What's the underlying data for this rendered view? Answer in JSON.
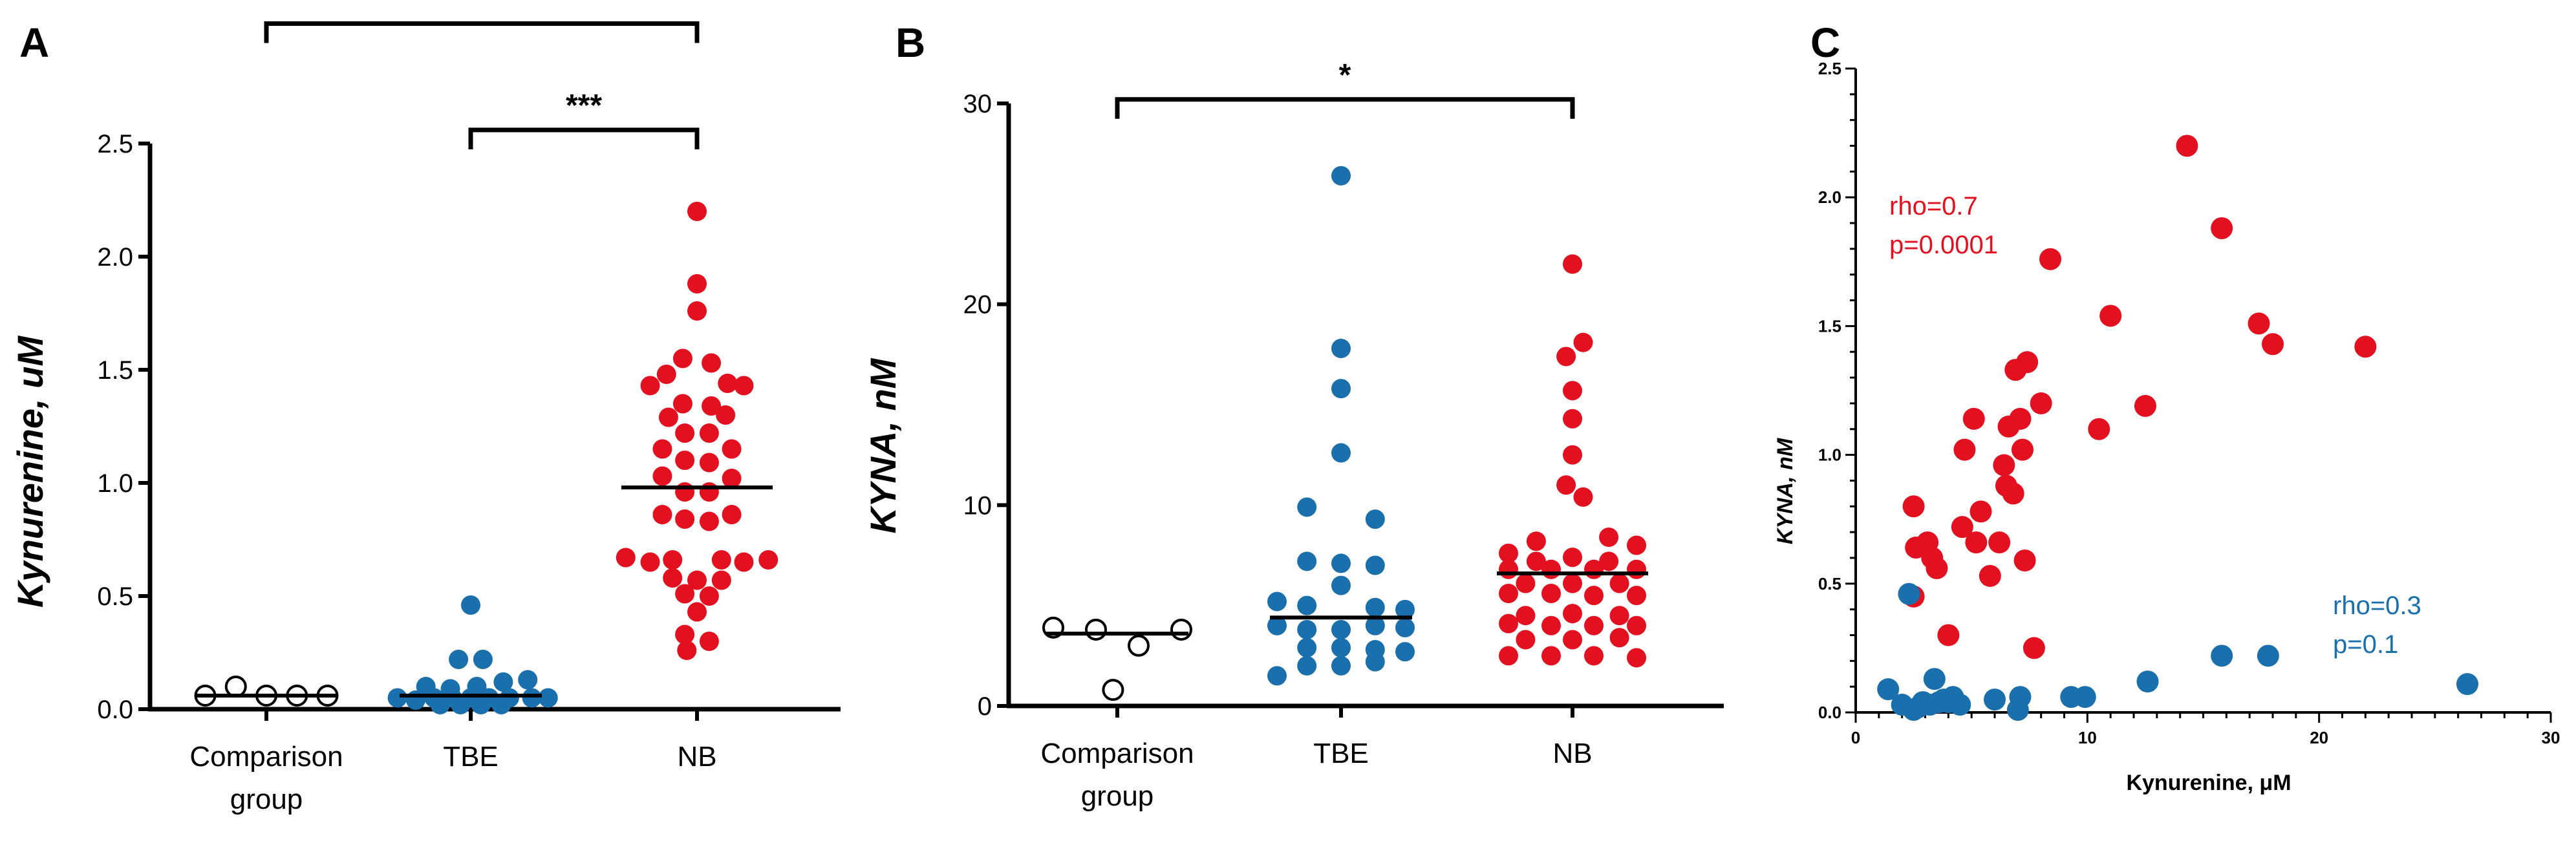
{
  "colors": {
    "tbe": "#1a6fad",
    "nb": "#e3101f",
    "comparison_fill": "#ffffff",
    "comparison_stroke": "#000000"
  },
  "chart_data": [
    {
      "id": "A",
      "type": "scatter",
      "panel_letter": "A",
      "ylabel_main": "Kynurenine,",
      "ylabel_unit": " uM",
      "ylim": [
        0,
        2.5
      ],
      "yticks": [
        0.0,
        0.5,
        1.0,
        1.5,
        2.0,
        2.5
      ],
      "ytick_labels": [
        "0.0",
        "0.5",
        "1.0",
        "1.5",
        "2.0",
        "2.5"
      ],
      "categories": [
        {
          "lines": [
            "Comparison",
            "group"
          ]
        },
        {
          "lines": [
            "TBE"
          ]
        },
        {
          "lines": [
            "NB"
          ]
        }
      ],
      "series": [
        {
          "category": 0,
          "style": "open",
          "median": 0.06,
          "points": [
            [
              -0.3,
              0.06
            ],
            [
              -0.15,
              0.1
            ],
            [
              0,
              0.06
            ],
            [
              0.15,
              0.06
            ],
            [
              0.3,
              0.06
            ]
          ]
        },
        {
          "category": 1,
          "style": "tbe",
          "median": 0.06,
          "points": [
            [
              0,
              0.46
            ],
            [
              -0.06,
              0.22
            ],
            [
              0.06,
              0.22
            ],
            [
              -0.22,
              0.1
            ],
            [
              -0.1,
              0.09
            ],
            [
              0.03,
              0.1
            ],
            [
              0.16,
              0.12
            ],
            [
              0.28,
              0.13
            ],
            [
              -0.36,
              0.05
            ],
            [
              -0.27,
              0.04
            ],
            [
              -0.18,
              0.05
            ],
            [
              -0.09,
              0.05
            ],
            [
              0,
              0.05
            ],
            [
              0.09,
              0.05
            ],
            [
              0.19,
              0.05
            ],
            [
              0.3,
              0.05
            ],
            [
              0.38,
              0.05
            ],
            [
              -0.15,
              0.02
            ],
            [
              -0.05,
              0.02
            ],
            [
              0.05,
              0.02
            ],
            [
              0.15,
              0.02
            ]
          ]
        },
        {
          "category": 2,
          "style": "nb",
          "median": 0.98,
          "points": [
            [
              0,
              2.2
            ],
            [
              0,
              1.88
            ],
            [
              0,
              1.76
            ],
            [
              -0.07,
              1.55
            ],
            [
              0.07,
              1.53
            ],
            [
              -0.15,
              1.48
            ],
            [
              0.15,
              1.44
            ],
            [
              -0.23,
              1.43
            ],
            [
              0.23,
              1.43
            ],
            [
              -0.07,
              1.35
            ],
            [
              0.07,
              1.34
            ],
            [
              -0.14,
              1.29
            ],
            [
              0.14,
              1.3
            ],
            [
              -0.06,
              1.22
            ],
            [
              0.06,
              1.22
            ],
            [
              -0.17,
              1.15
            ],
            [
              0.17,
              1.15
            ],
            [
              -0.06,
              1.1
            ],
            [
              0.06,
              1.09
            ],
            [
              -0.17,
              1.03
            ],
            [
              0.17,
              1.02
            ],
            [
              -0.06,
              0.96
            ],
            [
              0.06,
              0.96
            ],
            [
              -0.17,
              0.86
            ],
            [
              0.17,
              0.86
            ],
            [
              -0.06,
              0.84
            ],
            [
              0.06,
              0.83
            ],
            [
              -0.35,
              0.67
            ],
            [
              -0.23,
              0.65
            ],
            [
              -0.12,
              0.66
            ],
            [
              0.12,
              0.66
            ],
            [
              0.23,
              0.65
            ],
            [
              0.35,
              0.66
            ],
            [
              -0.12,
              0.58
            ],
            [
              0,
              0.57
            ],
            [
              0.12,
              0.57
            ],
            [
              -0.06,
              0.51
            ],
            [
              0.06,
              0.5
            ],
            [
              0,
              0.43
            ],
            [
              -0.06,
              0.33
            ],
            [
              0.06,
              0.3
            ],
            [
              -0.05,
              0.26
            ]
          ]
        }
      ],
      "brackets": [
        {
          "from": 0,
          "to": 2,
          "level": 3.03,
          "label": "***"
        },
        {
          "from": 1,
          "to": 2,
          "level": 2.56,
          "label": "***"
        }
      ]
    },
    {
      "id": "B",
      "type": "scatter",
      "panel_letter": "B",
      "ylabel_main": "KYNA,",
      "ylabel_unit": " nM",
      "ylim": [
        0,
        30
      ],
      "yticks": [
        0,
        10,
        20,
        30
      ],
      "ytick_labels": [
        "0",
        "10",
        "20",
        "30"
      ],
      "categories": [
        {
          "lines": [
            "Comparison",
            "group"
          ]
        },
        {
          "lines": [
            "TBE"
          ]
        },
        {
          "lines": [
            "NB"
          ]
        }
      ],
      "series": [
        {
          "category": 0,
          "style": "open",
          "median": 3.6,
          "points": [
            [
              -0.3,
              3.9
            ],
            [
              -0.1,
              3.8
            ],
            [
              0.1,
              3.0
            ],
            [
              0.3,
              3.8
            ],
            [
              -0.02,
              0.8
            ]
          ]
        },
        {
          "category": 1,
          "style": "tbe",
          "median": 4.4,
          "points": [
            [
              0,
              26.4
            ],
            [
              0,
              17.8
            ],
            [
              0,
              15.8
            ],
            [
              0,
              12.6
            ],
            [
              -0.16,
              9.9
            ],
            [
              0.16,
              9.3
            ],
            [
              -0.16,
              7.2
            ],
            [
              0,
              7.1
            ],
            [
              0.16,
              7.0
            ],
            [
              0,
              6.0
            ],
            [
              -0.3,
              5.2
            ],
            [
              -0.16,
              5.0
            ],
            [
              0.16,
              4.9
            ],
            [
              0.3,
              4.8
            ],
            [
              -0.3,
              4.0
            ],
            [
              -0.16,
              3.8
            ],
            [
              0,
              3.8
            ],
            [
              0.16,
              4.0
            ],
            [
              0.3,
              3.9
            ],
            [
              -0.16,
              2.9
            ],
            [
              0,
              2.9
            ],
            [
              0.16,
              2.8
            ],
            [
              0.3,
              2.7
            ],
            [
              -0.3,
              1.5
            ],
            [
              -0.16,
              2.0
            ],
            [
              0,
              2.0
            ],
            [
              0.16,
              2.2
            ]
          ]
        },
        {
          "category": 2,
          "style": "nb",
          "median": 6.6,
          "points": [
            [
              0,
              22.0
            ],
            [
              0.05,
              18.1
            ],
            [
              -0.03,
              17.4
            ],
            [
              0,
              15.7
            ],
            [
              0,
              14.3
            ],
            [
              0,
              12.5
            ],
            [
              -0.03,
              11.0
            ],
            [
              0.05,
              10.4
            ],
            [
              0.17,
              8.4
            ],
            [
              -0.17,
              8.2
            ],
            [
              0.3,
              8.0
            ],
            [
              -0.3,
              7.6
            ],
            [
              -0.17,
              7.2
            ],
            [
              0.17,
              7.2
            ],
            [
              0,
              7.4
            ],
            [
              -0.3,
              6.8
            ],
            [
              -0.1,
              6.8
            ],
            [
              0.1,
              6.8
            ],
            [
              0.3,
              6.8
            ],
            [
              -0.22,
              6.1
            ],
            [
              0,
              6.1
            ],
            [
              0.22,
              6.1
            ],
            [
              -0.3,
              5.6
            ],
            [
              -0.1,
              5.6
            ],
            [
              0.1,
              5.5
            ],
            [
              0.3,
              5.5
            ],
            [
              -0.22,
              4.5
            ],
            [
              0,
              4.6
            ],
            [
              0.22,
              4.5
            ],
            [
              -0.3,
              4.1
            ],
            [
              -0.1,
              4.0
            ],
            [
              0.1,
              4.0
            ],
            [
              0.3,
              4.0
            ],
            [
              -0.22,
              3.3
            ],
            [
              0,
              3.3
            ],
            [
              0.22,
              3.4
            ],
            [
              -0.3,
              2.5
            ],
            [
              -0.1,
              2.5
            ],
            [
              0.1,
              2.5
            ],
            [
              0.3,
              2.4
            ]
          ]
        }
      ],
      "brackets": [
        {
          "from": 0,
          "to": 2,
          "level": 30.2,
          "label": "*"
        }
      ]
    },
    {
      "id": "C",
      "type": "scatter",
      "panel_letter": "C",
      "xlabel_main": "Kynurenine, ",
      "xlabel_unit": "μM",
      "ylabel_main": "KYNA,",
      "ylabel_unit": " nM",
      "xlim": [
        0,
        30
      ],
      "ylim": [
        0,
        2.5
      ],
      "xticks": [
        0,
        10,
        20,
        30
      ],
      "xtick_labels": [
        "0",
        "10",
        "20",
        "30"
      ],
      "xminor_step": 1,
      "yticks": [
        0.0,
        0.5,
        1.0,
        1.5,
        2.0,
        2.5
      ],
      "ytick_labels": [
        "0.0",
        "0.5",
        "1.0",
        "1.5",
        "2.0",
        "2.5"
      ],
      "yminor_step": 0.1,
      "series": [
        {
          "style": "nb",
          "points": [
            [
              2.5,
              0.8
            ],
            [
              2.6,
              0.64
            ],
            [
              3.1,
              0.66
            ],
            [
              3.3,
              0.6
            ],
            [
              3.5,
              0.56
            ],
            [
              4.0,
              0.3
            ],
            [
              4.6,
              0.72
            ],
            [
              4.7,
              1.02
            ],
            [
              5.1,
              1.14
            ],
            [
              5.2,
              0.66
            ],
            [
              5.4,
              0.78
            ],
            [
              5.8,
              0.53
            ],
            [
              6.2,
              0.66
            ],
            [
              6.4,
              0.96
            ],
            [
              6.5,
              0.88
            ],
            [
              6.6,
              1.11
            ],
            [
              6.8,
              0.85
            ],
            [
              6.9,
              1.33
            ],
            [
              7.1,
              1.14
            ],
            [
              7.2,
              1.02
            ],
            [
              7.3,
              0.59
            ],
            [
              7.4,
              1.36
            ],
            [
              7.7,
              0.25
            ],
            [
              8.0,
              1.2
            ],
            [
              8.4,
              1.76
            ],
            [
              10.5,
              1.1
            ],
            [
              11.0,
              1.54
            ],
            [
              12.5,
              1.19
            ],
            [
              14.3,
              2.2
            ],
            [
              15.8,
              1.88
            ],
            [
              17.4,
              1.51
            ],
            [
              18.0,
              1.43
            ],
            [
              22.0,
              1.42
            ],
            [
              2.5,
              0.45
            ]
          ]
        },
        {
          "style": "tbe",
          "points": [
            [
              1.4,
              0.09
            ],
            [
              2.0,
              0.03
            ],
            [
              2.3,
              0.46
            ],
            [
              2.5,
              0.01
            ],
            [
              2.7,
              0.02
            ],
            [
              2.9,
              0.04
            ],
            [
              3.2,
              0.03
            ],
            [
              3.4,
              0.13
            ],
            [
              3.6,
              0.04
            ],
            [
              3.8,
              0.05
            ],
            [
              4.0,
              0.04
            ],
            [
              4.2,
              0.06
            ],
            [
              4.5,
              0.03
            ],
            [
              6.0,
              0.05
            ],
            [
              7.0,
              0.01
            ],
            [
              7.1,
              0.06
            ],
            [
              9.3,
              0.06
            ],
            [
              9.9,
              0.06
            ],
            [
              12.6,
              0.12
            ],
            [
              15.8,
              0.22
            ],
            [
              17.8,
              0.22
            ],
            [
              26.4,
              0.11
            ]
          ]
        }
      ],
      "annotations": [
        {
          "lines": [
            "rho=0.7",
            "p=0.0001"
          ],
          "style": "nb"
        },
        {
          "lines": [
            "rho=0.3",
            "p=0.1"
          ],
          "style": "tbe"
        }
      ]
    }
  ]
}
